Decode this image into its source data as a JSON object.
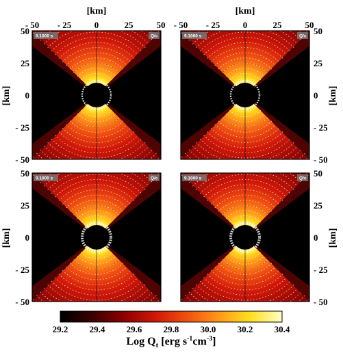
{
  "chart_data": {
    "type": "heatmap",
    "description_units": "km",
    "x_axis": {
      "label": "[km]",
      "range": [
        -50,
        50
      ],
      "ticks": [
        "- 50",
        "- 25",
        "0",
        "25",
        "50"
      ],
      "tick_values": [
        -50,
        -25,
        0,
        25,
        50
      ]
    },
    "y_axis": {
      "label": "[km]",
      "range": [
        -50,
        50
      ],
      "ticks": [
        "50",
        "25",
        "0",
        "- 25",
        "- 50"
      ],
      "tick_values": [
        50,
        25,
        0,
        -25,
        -50
      ]
    },
    "panels": [
      {
        "id": "top-left",
        "time": "9.1000 s",
        "tag": "Q/c"
      },
      {
        "id": "top-right",
        "time": "9.1000 s",
        "tag": "Q/c"
      },
      {
        "id": "bottom-left",
        "time": "9.1000 s",
        "tag": "Q/c"
      },
      {
        "id": "bottom-right",
        "time": "9.1000 s",
        "tag": "Q/c"
      }
    ],
    "colorbar": {
      "title_main": "Log Q",
      "title_sub": "t",
      "title_unit_pre": " [erg s",
      "title_exp1": "-1",
      "title_mid": "cm",
      "title_exp2": "-3",
      "title_end": "]",
      "range": [
        29.2,
        30.4
      ],
      "ticks": [
        "29.2",
        "29.4",
        "29.6",
        "29.8",
        "30.0",
        "30.2",
        "30.4"
      ],
      "tick_values": [
        29.2,
        29.4,
        29.6,
        29.8,
        30.0,
        30.2,
        30.4
      ],
      "colors": [
        "#000000",
        "#3a0000",
        "#8c0000",
        "#d01808",
        "#f05010",
        "#ff9818",
        "#ffe020",
        "#ffffc8"
      ]
    }
  }
}
